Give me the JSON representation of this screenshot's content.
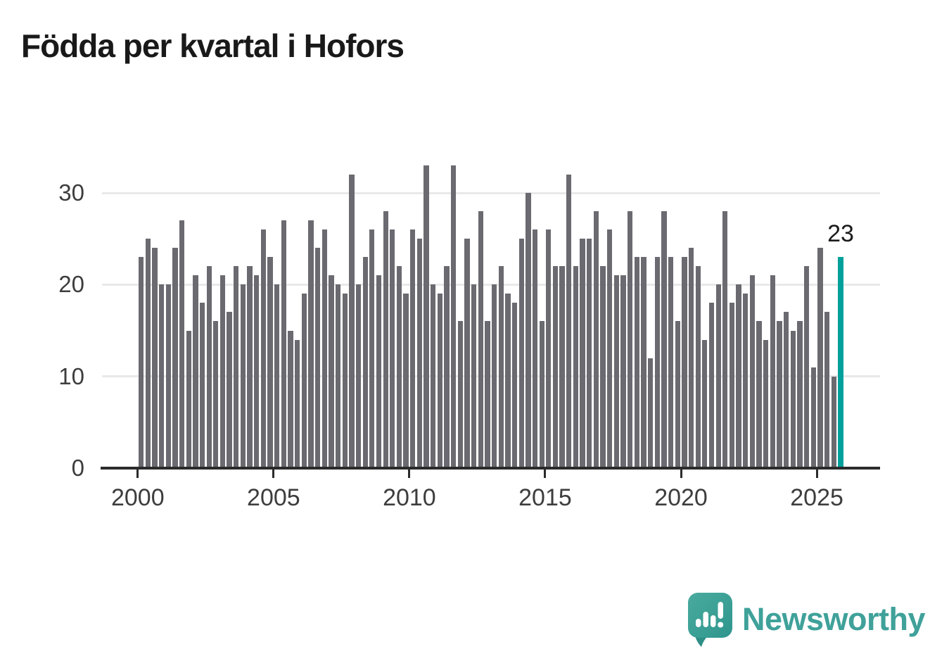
{
  "title": "Födda per kvartal i Hofors",
  "chart_data": {
    "type": "bar",
    "title": "Födda per kvartal i Hofors",
    "ylabel": "",
    "xlabel": "",
    "start_year": 2000,
    "start_quarter": 1,
    "frequency": "quarterly",
    "values": [
      23,
      25,
      24,
      20,
      20,
      24,
      27,
      15,
      21,
      18,
      22,
      16,
      21,
      17,
      22,
      20,
      22,
      21,
      26,
      23,
      20,
      27,
      15,
      14,
      19,
      27,
      24,
      26,
      21,
      20,
      19,
      32,
      20,
      23,
      26,
      21,
      28,
      26,
      22,
      19,
      26,
      25,
      33,
      20,
      19,
      22,
      33,
      16,
      25,
      20,
      28,
      16,
      20,
      22,
      19,
      18,
      25,
      30,
      26,
      16,
      26,
      22,
      22,
      32,
      22,
      25,
      25,
      28,
      22,
      26,
      21,
      21,
      28,
      23,
      23,
      12,
      23,
      28,
      23,
      16,
      23,
      24,
      22,
      14,
      18,
      20,
      28,
      18,
      20,
      19,
      21,
      16,
      14,
      21,
      16,
      17,
      15,
      16,
      22,
      11,
      24,
      17,
      10,
      23
    ],
    "highlight_last": true,
    "last_value_label": "23",
    "ylim": [
      0,
      33.6
    ],
    "y_ticks": [
      0,
      10,
      20,
      30
    ],
    "x_tick_years": [
      "2000",
      "2005",
      "2010",
      "2015",
      "2020",
      "2025"
    ],
    "grid": "horizontal",
    "legend_position": "none",
    "bar_color": "#6a6a70",
    "highlight_color": "#00a09b",
    "grid_color": "#e9e9e9",
    "axis_color": "#2b2b2b"
  },
  "axes": {
    "y_labels": [
      "30",
      "20",
      "10",
      "0"
    ],
    "y_values": [
      30,
      20,
      10,
      0
    ],
    "x_labels": [
      "2000",
      "2005",
      "2010",
      "2015",
      "2020",
      "2025"
    ]
  },
  "annotation": {
    "last_value": "23"
  },
  "branding": {
    "name": "Newsworthy",
    "logo_icon": "speech-bubble-bar-chart-icon",
    "text_color": "#3fa19a",
    "bubble_color": "#3fa69c"
  }
}
